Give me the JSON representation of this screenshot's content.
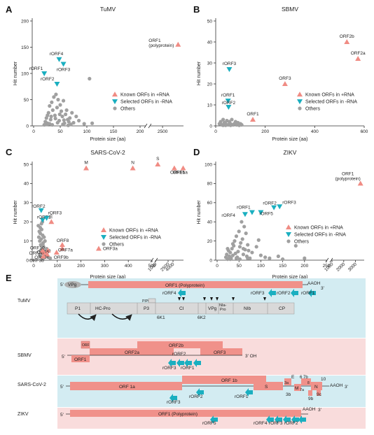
{
  "colors": {
    "known": "#F08C84",
    "selected": "#1AAFC0",
    "others": "#A0A0A0",
    "bgBlue": "#D3ECF2",
    "bgPink": "#F9DCDC",
    "orf": "#F0918A",
    "protein": "#D9D9D9"
  },
  "legend": {
    "known": "Known ORFs in +RNA",
    "selected": "Selected ORFs in -RNA",
    "others": "Others"
  },
  "chart_data": [
    {
      "panel": "A",
      "type": "scatter",
      "title": "TuMV",
      "xlabel": "Protein size (aa)",
      "ylabel": "Hit number",
      "x_ticks": [
        "0",
        "50",
        "100",
        "150",
        "200",
        "2500"
      ],
      "y_ticks": [
        "0",
        "50",
        "100",
        "150",
        "200"
      ],
      "ylim": [
        0,
        200
      ],
      "points": [
        {
          "series": "known",
          "x": 3150,
          "y": 155,
          "label": "ORF1\n(polyprotein)"
        },
        {
          "series": "selected",
          "x": 48,
          "y": 127,
          "label": "rORF4"
        },
        {
          "series": "selected",
          "x": 56,
          "y": 118,
          "label": "rORF3"
        },
        {
          "series": "selected",
          "x": 20,
          "y": 100,
          "label": "rORF1"
        },
        {
          "series": "selected",
          "x": 44,
          "y": 80,
          "label": "rORF2"
        }
      ],
      "others": [
        [
          20,
          2
        ],
        [
          22,
          8
        ],
        [
          24,
          15
        ],
        [
          26,
          5
        ],
        [
          28,
          25
        ],
        [
          30,
          38
        ],
        [
          32,
          12
        ],
        [
          34,
          45
        ],
        [
          36,
          30
        ],
        [
          38,
          55
        ],
        [
          40,
          20
        ],
        [
          42,
          60
        ],
        [
          44,
          35
        ],
        [
          46,
          50
        ],
        [
          48,
          10
        ],
        [
          50,
          40
        ],
        [
          52,
          28
        ],
        [
          54,
          18
        ],
        [
          56,
          48
        ],
        [
          58,
          5
        ],
        [
          60,
          22
        ],
        [
          62,
          30
        ],
        [
          64,
          12
        ],
        [
          66,
          8
        ],
        [
          68,
          15
        ],
        [
          70,
          3
        ],
        [
          72,
          25
        ],
        [
          75,
          6
        ],
        [
          80,
          18
        ],
        [
          85,
          10
        ],
        [
          95,
          4
        ],
        [
          105,
          90
        ],
        [
          110,
          5
        ],
        [
          25,
          3
        ],
        [
          30,
          4
        ],
        [
          35,
          2
        ],
        [
          45,
          6
        ],
        [
          55,
          3
        ],
        [
          65,
          1
        ],
        [
          26,
          20
        ],
        [
          33,
          18
        ],
        [
          41,
          14
        ],
        [
          49,
          22
        ],
        [
          57,
          11
        ]
      ]
    },
    {
      "panel": "B",
      "type": "scatter",
      "title": "SBMV",
      "xlabel": "Protein size (aa)",
      "ylabel": "Hit number",
      "x_ticks": [
        "0",
        "200",
        "400",
        "600"
      ],
      "y_ticks": [
        "0",
        "10",
        "20",
        "30",
        "40",
        "50"
      ],
      "xlim": [
        0,
        600
      ],
      "ylim": [
        0,
        50
      ],
      "points": [
        {
          "series": "known",
          "x": 530,
          "y": 40,
          "label": "ORF2b"
        },
        {
          "series": "known",
          "x": 575,
          "y": 32,
          "label": "ORF2a"
        },
        {
          "series": "known",
          "x": 280,
          "y": 20,
          "label": "ORF3"
        },
        {
          "series": "known",
          "x": 150,
          "y": 3,
          "label": "ORF1"
        },
        {
          "series": "selected",
          "x": 55,
          "y": 27,
          "label": "rORF3"
        },
        {
          "series": "selected",
          "x": 50,
          "y": 12,
          "label": "rORF1"
        },
        {
          "series": "selected",
          "x": 52,
          "y": 9,
          "label": "rORF2"
        }
      ],
      "others": [
        [
          15,
          1
        ],
        [
          20,
          2
        ],
        [
          25,
          0.5
        ],
        [
          30,
          3
        ],
        [
          35,
          1.5
        ],
        [
          40,
          1
        ],
        [
          45,
          2.5
        ],
        [
          50,
          0.5
        ],
        [
          55,
          2
        ],
        [
          60,
          1
        ],
        [
          65,
          3
        ],
        [
          70,
          0.5
        ],
        [
          75,
          1
        ],
        [
          80,
          2
        ],
        [
          85,
          0.5
        ],
        [
          90,
          1.5
        ],
        [
          95,
          0.3
        ],
        [
          100,
          1
        ],
        [
          105,
          0.5
        ],
        [
          30,
          0.3
        ],
        [
          40,
          0.3
        ],
        [
          60,
          0.3
        ]
      ]
    },
    {
      "panel": "C",
      "type": "scatter",
      "title": "SARS-CoV-2",
      "xlabel": "Protein size (aa)",
      "ylabel": "Hit number",
      "x_ticks": [
        "0",
        "100",
        "200",
        "300",
        "400",
        "500",
        "1000",
        "2500",
        "4000"
      ],
      "y_ticks": [
        "0",
        "10",
        "20",
        "30",
        "40",
        "50"
      ],
      "ylim": [
        0,
        50
      ],
      "points": [
        {
          "series": "known",
          "x": 222,
          "y": 48,
          "label": "M"
        },
        {
          "series": "known",
          "x": 419,
          "y": 48,
          "label": "N"
        },
        {
          "series": "known",
          "x": 1273,
          "y": 50,
          "label": "S"
        },
        {
          "series": "known",
          "x": 7096,
          "y": 48,
          "label": "ORF1b"
        },
        {
          "series": "known",
          "x": 4405,
          "y": 48,
          "label": "ORF1a"
        },
        {
          "series": "known",
          "x": 75,
          "y": 20,
          "label": "E"
        },
        {
          "series": "known",
          "x": 121,
          "y": 8,
          "label": "ORF8"
        },
        {
          "series": "known",
          "x": 121,
          "y": 6,
          "label": "ORF7a"
        },
        {
          "series": "known",
          "x": 275,
          "y": 6,
          "label": "ORF3a"
        },
        {
          "series": "known",
          "x": 61,
          "y": 5,
          "label": "ORF6"
        },
        {
          "series": "known",
          "x": 97,
          "y": 4,
          "label": "ORF9b"
        },
        {
          "series": "known",
          "x": 43,
          "y": 4,
          "label": "ORF7b"
        },
        {
          "series": "known",
          "x": 38,
          "y": 5,
          "label": "ORF10"
        },
        {
          "series": "known",
          "x": 57,
          "y": 3,
          "label": "ORF3c"
        },
        {
          "series": "known",
          "x": 41,
          "y": 2,
          "label": "ORF3b"
        },
        {
          "series": "selected",
          "x": 32,
          "y": 26,
          "label": "rORF2"
        },
        {
          "series": "selected",
          "x": 38,
          "y": 21,
          "label": "rORF1"
        },
        {
          "series": "selected",
          "x": 55,
          "y": 22,
          "label": "rORF3"
        }
      ],
      "others": [
        [
          20,
          18
        ],
        [
          22,
          12
        ],
        [
          24,
          15
        ],
        [
          26,
          10
        ],
        [
          28,
          14
        ],
        [
          30,
          8
        ],
        [
          32,
          11
        ],
        [
          34,
          16
        ],
        [
          36,
          6
        ],
        [
          38,
          13
        ],
        [
          40,
          9
        ],
        [
          42,
          7
        ],
        [
          44,
          12
        ],
        [
          46,
          5
        ],
        [
          48,
          10
        ],
        [
          50,
          4
        ],
        [
          25,
          3
        ],
        [
          30,
          2
        ],
        [
          35,
          4
        ],
        [
          40,
          1
        ],
        [
          45,
          3
        ],
        [
          55,
          6
        ],
        [
          60,
          2
        ],
        [
          65,
          5
        ],
        [
          70,
          1
        ],
        [
          28,
          17
        ],
        [
          33,
          19
        ],
        [
          37,
          20
        ],
        [
          29,
          5
        ],
        [
          39,
          8
        ]
      ]
    },
    {
      "panel": "D",
      "type": "scatter",
      "title": "ZIKV",
      "xlabel": "Protein size (aa)",
      "ylabel": "Hit number",
      "x_ticks": [
        "0",
        "50",
        "100",
        "150",
        "200",
        "250",
        "1000",
        "2000",
        "3000"
      ],
      "y_ticks": [
        "0",
        "20",
        "40",
        "60",
        "80",
        "100"
      ],
      "ylim": [
        0,
        100
      ],
      "points": [
        {
          "series": "known",
          "x": 3423,
          "y": 80,
          "label": "ORF1\n(polyprotein)"
        },
        {
          "series": "selected",
          "x": 64,
          "y": 48,
          "label": "rORF4"
        },
        {
          "series": "selected",
          "x": 100,
          "y": 50,
          "label": "rORF5"
        },
        {
          "series": "selected",
          "x": 80,
          "y": 50,
          "label": "rORF1"
        },
        {
          "series": "selected",
          "x": 130,
          "y": 55,
          "label": "rORF2"
        },
        {
          "series": "selected",
          "x": 143,
          "y": 56,
          "label": "rORF3"
        }
      ],
      "others": [
        [
          20,
          3
        ],
        [
          22,
          6
        ],
        [
          24,
          1
        ],
        [
          26,
          10
        ],
        [
          28,
          4
        ],
        [
          30,
          8
        ],
        [
          32,
          2
        ],
        [
          34,
          12
        ],
        [
          36,
          5
        ],
        [
          38,
          15
        ],
        [
          40,
          20
        ],
        [
          42,
          7
        ],
        [
          44,
          25
        ],
        [
          46,
          3
        ],
        [
          48,
          9
        ],
        [
          50,
          30
        ],
        [
          52,
          14
        ],
        [
          54,
          18
        ],
        [
          56,
          40
        ],
        [
          58,
          22
        ],
        [
          60,
          6
        ],
        [
          62,
          35
        ],
        [
          64,
          11
        ],
        [
          66,
          28
        ],
        [
          68,
          4
        ],
        [
          70,
          16
        ],
        [
          72,
          10
        ],
        [
          75,
          2
        ],
        [
          80,
          8
        ],
        [
          90,
          14
        ],
        [
          95,
          21
        ],
        [
          100,
          5
        ],
        [
          110,
          3
        ],
        [
          120,
          2
        ],
        [
          140,
          4
        ],
        [
          150,
          1
        ],
        [
          180,
          15
        ],
        [
          200,
          2
        ],
        [
          24,
          12
        ],
        [
          30,
          1
        ],
        [
          36,
          17
        ],
        [
          44,
          2
        ],
        [
          52,
          1
        ],
        [
          60,
          12
        ],
        [
          70,
          2
        ]
      ]
    }
  ],
  "genome": {
    "panel": "E",
    "tracks": [
      {
        "name": "TuMV",
        "orf_label": "ORF1 (Polyprotein)",
        "vpg": "VPg",
        "five": "5'",
        "three": "3'",
        "polyA": "AAOH",
        "pipo": "PIPO",
        "proteins": [
          "P1",
          "HC-Pro",
          "P3",
          "CI",
          "VPg",
          "NIa-\nPro",
          "NIb",
          "CP"
        ],
        "small": [
          "6K1",
          "6K2"
        ],
        "rorfs": [
          "rORF4",
          "rORF3",
          "rORF2",
          "rORF1"
        ]
      },
      {
        "name": "SBMV",
        "five": "5'",
        "three": "3' OH",
        "orfs": [
          "ORF1",
          "ORF",
          "ORF2a",
          "ORF2b",
          "ORF3"
        ],
        "rorfs": [
          "rORF3",
          "rORF1",
          "rORF2"
        ]
      },
      {
        "name": "SARS-CoV-2",
        "five": "5'",
        "three": "3'",
        "polyA": "AAOH",
        "orfs": [
          "ORF 1a",
          "ORF 1b",
          "S",
          "3a",
          "E",
          "M",
          "6",
          "7a",
          "7b",
          "8",
          "N",
          "10",
          "3b",
          "9b",
          "9c"
        ],
        "rorfs": [
          "rORF3",
          "rORF2",
          "rORF1"
        ]
      },
      {
        "name": "ZIKV",
        "five": "5'",
        "three": "3'",
        "polyA": "AAOH",
        "orf_label": "ORF1 (Polyprotein)",
        "rorfs": [
          "rORF5",
          "rORF4",
          "rORF3",
          "rORF2"
        ]
      }
    ]
  }
}
